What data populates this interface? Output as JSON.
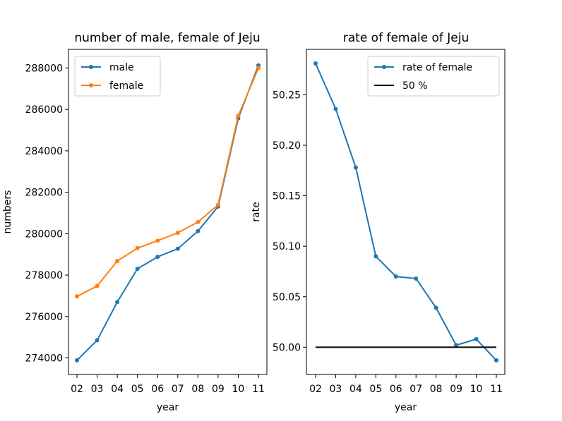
{
  "chart_data": [
    {
      "type": "line",
      "title": "number of male, female of Jeju",
      "xlabel": "year",
      "ylabel": "numbers",
      "categories": [
        "02",
        "03",
        "04",
        "05",
        "06",
        "07",
        "08",
        "09",
        "10",
        "11"
      ],
      "series": [
        {
          "name": "male",
          "color": "#1f77b4",
          "values": [
            273880,
            274850,
            276700,
            278300,
            278880,
            279270,
            280120,
            281310,
            285570,
            288130
          ]
        },
        {
          "name": "female",
          "color": "#ff7f0e",
          "values": [
            276970,
            277470,
            278680,
            279300,
            279660,
            280040,
            280560,
            281390,
            285690,
            288000
          ]
        }
      ],
      "ylim": [
        273200,
        288900
      ],
      "yticks": [
        274000,
        276000,
        278000,
        280000,
        282000,
        284000,
        286000,
        288000
      ],
      "legend": "top-left",
      "grid": false
    },
    {
      "type": "line",
      "title": "rate of female of Jeju",
      "xlabel": "year",
      "ylabel": "rate",
      "categories": [
        "02",
        "03",
        "04",
        "05",
        "06",
        "07",
        "08",
        "09",
        "10",
        "11"
      ],
      "series": [
        {
          "name": "rate of female",
          "color": "#1f77b4",
          "values": [
            50.281,
            50.236,
            50.178,
            50.09,
            50.07,
            50.068,
            50.039,
            50.002,
            50.008,
            49.987
          ]
        },
        {
          "name": "50 %",
          "color": "#000000",
          "values": [
            50,
            50,
            50,
            50,
            50,
            50,
            50,
            50,
            50,
            50
          ]
        }
      ],
      "ylim": [
        49.973,
        50.295
      ],
      "yticks": [
        50.0,
        50.05,
        50.1,
        50.15,
        50.2,
        50.25
      ],
      "legend": "top-right",
      "grid": false
    }
  ]
}
